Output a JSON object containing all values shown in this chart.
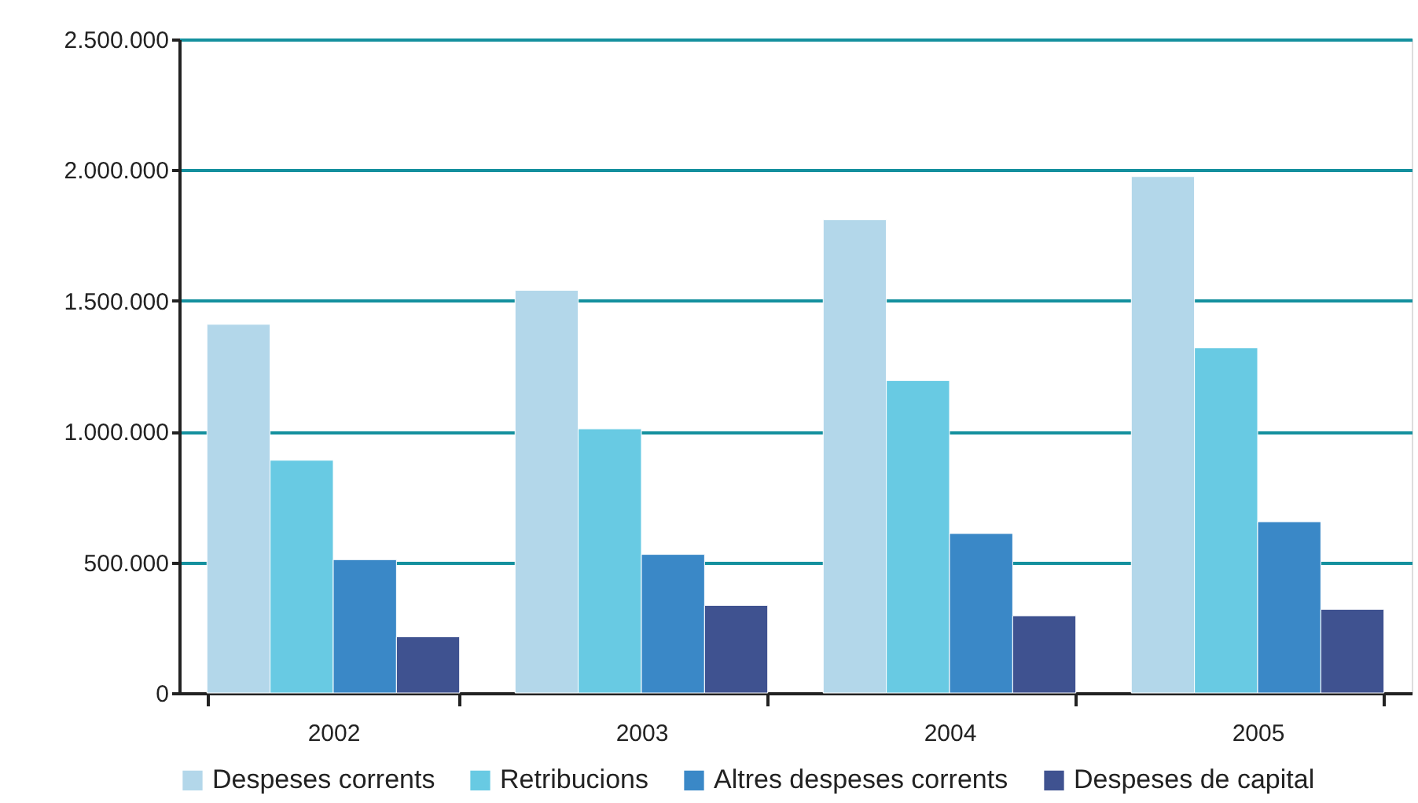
{
  "chart_data": {
    "type": "bar",
    "categories": [
      "2002",
      "2003",
      "2004",
      "2005"
    ],
    "series": [
      {
        "name": "Despeses corrents",
        "color": "#b3d7ea",
        "values": [
          1410000,
          1540000,
          1810000,
          1975000
        ]
      },
      {
        "name": "Retribucions",
        "color": "#68cae3",
        "values": [
          890000,
          1010000,
          1195000,
          1320000
        ]
      },
      {
        "name": "Altres despeses corrents",
        "color": "#3a88c7",
        "values": [
          510000,
          530000,
          610000,
          655000
        ]
      },
      {
        "name": "Despeses de capital",
        "color": "#3f5290",
        "values": [
          215000,
          335000,
          295000,
          320000
        ]
      }
    ],
    "ylim": [
      0,
      2500000
    ],
    "yticks": [
      {
        "value": 0,
        "label": "0"
      },
      {
        "value": 500000,
        "label": "500.000"
      },
      {
        "value": 1000000,
        "label": "1.000.000"
      },
      {
        "value": 1500000,
        "label": "1.500.000"
      },
      {
        "value": 2000000,
        "label": "2.000.000"
      },
      {
        "value": 2500000,
        "label": "2.500.000"
      }
    ],
    "grid": "y",
    "legend": "bottom"
  }
}
